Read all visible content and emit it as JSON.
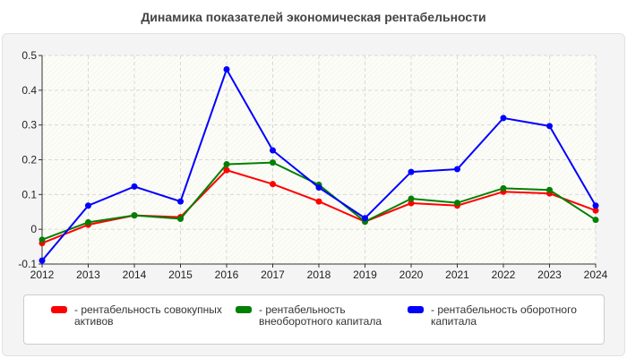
{
  "chart_data": {
    "type": "line",
    "title": "Динамика показателей экономическая рентабельности",
    "xlabel": "",
    "ylabel": "",
    "categories": [
      "2012",
      "2013",
      "2014",
      "2015",
      "2016",
      "2017",
      "2018",
      "2019",
      "2020",
      "2021",
      "2022",
      "2023",
      "2024"
    ],
    "ylim": [
      -0.1,
      0.5
    ],
    "yticks": [
      "0.5",
      "0.4",
      "0.3",
      "0.2",
      "0.1",
      "0",
      "-0.1"
    ],
    "grid": true,
    "legend_position": "bottom",
    "series": [
      {
        "name": "- рентабельность совокупных активов",
        "color": "#ff0000",
        "values": [
          -0.04,
          0.013,
          0.04,
          0.035,
          0.17,
          0.13,
          0.08,
          0.022,
          0.075,
          0.068,
          0.108,
          0.103,
          0.054
        ]
      },
      {
        "name": "- рентабельность внеоборотного капитала",
        "color": "#008000",
        "values": [
          -0.03,
          0.02,
          0.04,
          0.03,
          0.187,
          0.192,
          0.128,
          0.022,
          0.088,
          0.076,
          0.118,
          0.113,
          0.027
        ]
      },
      {
        "name": "- рентабельность оборотного капитала",
        "color": "#0000ff",
        "values": [
          -0.09,
          0.068,
          0.123,
          0.08,
          0.46,
          0.227,
          0.12,
          0.032,
          0.165,
          0.173,
          0.32,
          0.297,
          0.068
        ]
      }
    ]
  }
}
